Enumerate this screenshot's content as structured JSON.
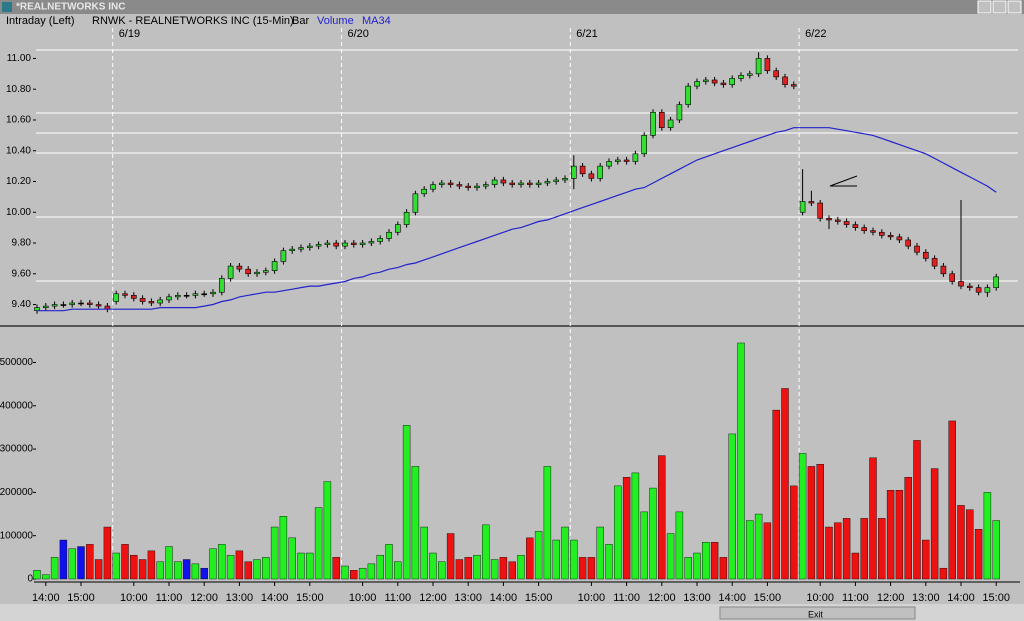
{
  "window_title": "*REALNETWORKS INC",
  "footer": "Exit",
  "chart_data": [
    {
      "type": "candlestick",
      "title": "Intraday  (Left)",
      "subtitle": "RNWK - REALNETWORKS INC (15-Min)",
      "style": "Bar",
      "up_color": "#33dd33",
      "down_color": "#dd2222",
      "sessions": [
        {
          "label": "6/19",
          "start": 9
        },
        {
          "label": "6/20",
          "start": 35
        },
        {
          "label": "6/21",
          "start": 61
        },
        {
          "label": "6/22",
          "start": 87
        }
      ],
      "open": [
        9.36,
        9.38,
        9.39,
        9.4,
        9.4,
        9.41,
        9.41,
        9.4,
        9.39,
        9.42,
        9.47,
        9.46,
        9.44,
        9.42,
        9.41,
        9.43,
        9.45,
        9.46,
        9.46,
        9.47,
        9.47,
        9.48,
        9.57,
        9.65,
        9.63,
        9.6,
        9.61,
        9.62,
        9.68,
        9.75,
        9.76,
        9.77,
        9.78,
        9.79,
        9.8,
        9.78,
        9.8,
        9.79,
        9.8,
        9.81,
        9.83,
        9.87,
        9.92,
        10.0,
        10.12,
        10.15,
        10.18,
        10.19,
        10.18,
        10.17,
        10.16,
        10.17,
        10.18,
        10.21,
        10.19,
        10.18,
        10.19,
        10.18,
        10.19,
        10.2,
        10.21,
        10.22,
        10.3,
        10.25,
        10.22,
        10.3,
        10.33,
        10.34,
        10.33,
        10.38,
        10.5,
        10.65,
        10.55,
        10.6,
        10.7,
        10.82,
        10.85,
        10.86,
        10.84,
        10.83,
        10.87,
        10.89,
        10.9,
        11.0,
        10.92,
        10.88,
        10.83,
        10.0,
        10.07,
        10.06,
        9.96,
        9.95,
        9.94,
        9.92,
        9.9,
        9.88,
        9.87,
        9.85,
        9.84,
        9.82,
        9.78,
        9.74,
        9.7,
        9.65,
        9.6,
        9.55,
        9.52,
        9.51,
        9.48,
        9.51
      ],
      "high": [
        9.4,
        9.41,
        9.42,
        9.42,
        9.43,
        9.43,
        9.43,
        9.42,
        9.41,
        9.49,
        9.49,
        9.48,
        9.46,
        9.44,
        9.45,
        9.47,
        9.48,
        9.48,
        9.49,
        9.49,
        9.5,
        9.59,
        9.67,
        9.67,
        9.65,
        9.63,
        9.64,
        9.7,
        9.77,
        9.78,
        9.79,
        9.8,
        9.81,
        9.82,
        9.82,
        9.82,
        9.82,
        9.82,
        9.83,
        9.85,
        9.89,
        9.94,
        10.02,
        10.14,
        10.17,
        10.2,
        10.21,
        10.21,
        10.2,
        10.19,
        10.19,
        10.2,
        10.23,
        10.23,
        10.21,
        10.21,
        10.21,
        10.21,
        10.22,
        10.23,
        10.24,
        10.37,
        10.32,
        10.27,
        10.32,
        10.35,
        10.36,
        10.36,
        10.4,
        10.52,
        10.67,
        10.67,
        10.62,
        10.72,
        10.84,
        10.87,
        10.88,
        10.88,
        10.86,
        10.89,
        10.91,
        10.92,
        11.04,
        11.02,
        10.94,
        10.9,
        10.85,
        10.28,
        10.14,
        10.08,
        9.98,
        9.97,
        9.96,
        9.94,
        9.92,
        9.9,
        9.89,
        9.87,
        9.86,
        9.84,
        9.8,
        9.76,
        9.72,
        9.67,
        9.62,
        10.08,
        9.54,
        9.53,
        9.53,
        9.6
      ],
      "low": [
        9.34,
        9.36,
        9.37,
        9.38,
        9.38,
        9.39,
        9.38,
        9.37,
        9.35,
        9.4,
        9.44,
        9.42,
        9.4,
        9.39,
        9.39,
        9.41,
        9.43,
        9.44,
        9.44,
        9.45,
        9.45,
        9.46,
        9.55,
        9.61,
        9.58,
        9.58,
        9.59,
        9.6,
        9.66,
        9.73,
        9.74,
        9.75,
        9.76,
        9.77,
        9.76,
        9.76,
        9.77,
        9.77,
        9.78,
        9.79,
        9.81,
        9.85,
        9.9,
        9.98,
        10.1,
        10.13,
        10.16,
        10.16,
        10.15,
        10.14,
        10.14,
        10.15,
        10.16,
        10.17,
        10.16,
        10.16,
        10.16,
        10.16,
        10.17,
        10.18,
        10.19,
        10.15,
        10.23,
        10.2,
        10.2,
        10.28,
        10.31,
        10.31,
        10.31,
        10.36,
        10.48,
        10.53,
        10.53,
        10.58,
        10.68,
        10.8,
        10.83,
        10.82,
        10.81,
        10.81,
        10.85,
        10.87,
        10.88,
        10.9,
        10.86,
        10.81,
        10.8,
        9.98,
        10.04,
        9.94,
        9.89,
        9.92,
        9.9,
        9.88,
        9.86,
        9.85,
        9.83,
        9.82,
        9.8,
        9.76,
        9.72,
        9.68,
        9.63,
        9.58,
        9.53,
        9.5,
        9.49,
        9.46,
        9.45,
        9.49
      ],
      "close": [
        9.38,
        9.39,
        9.4,
        9.4,
        9.41,
        9.41,
        9.4,
        9.39,
        9.37,
        9.47,
        9.46,
        9.44,
        9.42,
        9.41,
        9.43,
        9.45,
        9.46,
        9.46,
        9.47,
        9.47,
        9.48,
        9.57,
        9.65,
        9.63,
        9.6,
        9.61,
        9.62,
        9.68,
        9.75,
        9.76,
        9.77,
        9.78,
        9.79,
        9.8,
        9.78,
        9.8,
        9.79,
        9.8,
        9.81,
        9.83,
        9.87,
        9.92,
        10.0,
        10.12,
        10.15,
        10.18,
        10.19,
        10.18,
        10.17,
        10.16,
        10.17,
        10.18,
        10.21,
        10.19,
        10.18,
        10.19,
        10.18,
        10.19,
        10.2,
        10.21,
        10.22,
        10.3,
        10.25,
        10.22,
        10.3,
        10.33,
        10.34,
        10.33,
        10.38,
        10.5,
        10.65,
        10.55,
        10.6,
        10.7,
        10.82,
        10.85,
        10.86,
        10.84,
        10.83,
        10.87,
        10.89,
        10.9,
        11.0,
        10.92,
        10.88,
        10.83,
        10.82,
        10.07,
        10.06,
        9.96,
        9.95,
        9.94,
        9.92,
        9.9,
        9.88,
        9.87,
        9.85,
        9.84,
        9.82,
        9.78,
        9.74,
        9.7,
        9.65,
        9.6,
        9.55,
        9.52,
        9.51,
        9.48,
        9.51,
        9.58
      ],
      "series": [
        {
          "name": "MA34",
          "color": "#2222cc",
          "values": [
            9.36,
            9.36,
            9.36,
            9.36,
            9.37,
            9.37,
            9.37,
            9.37,
            9.37,
            9.37,
            9.37,
            9.37,
            9.37,
            9.37,
            9.38,
            9.38,
            9.38,
            9.38,
            9.38,
            9.39,
            9.4,
            9.42,
            9.43,
            9.45,
            9.46,
            9.47,
            9.48,
            9.48,
            9.49,
            9.5,
            9.51,
            9.52,
            9.52,
            9.53,
            9.54,
            9.55,
            9.57,
            9.58,
            9.6,
            9.61,
            9.63,
            9.64,
            9.66,
            9.67,
            9.69,
            9.71,
            9.73,
            9.75,
            9.77,
            9.79,
            9.81,
            9.83,
            9.85,
            9.87,
            9.89,
            9.9,
            9.92,
            9.94,
            9.95,
            9.97,
            9.99,
            10.01,
            10.03,
            10.05,
            10.07,
            10.09,
            10.11,
            10.13,
            10.15,
            10.16,
            10.19,
            10.22,
            10.25,
            10.28,
            10.31,
            10.34,
            10.36,
            10.38,
            10.4,
            10.42,
            10.44,
            10.46,
            10.48,
            10.5,
            10.52,
            10.53,
            10.55,
            10.55,
            10.55,
            10.55,
            10.55,
            10.54,
            10.53,
            10.52,
            10.51,
            10.5,
            10.48,
            10.46,
            10.44,
            10.42,
            10.4,
            10.38,
            10.35,
            10.32,
            10.29,
            10.26,
            10.23,
            10.2,
            10.17,
            10.13
          ]
        }
      ],
      "ylim": [
        9.28,
        11.25
      ],
      "yticks": [
        {
          "value": 9.4,
          "label": "9.40"
        },
        {
          "value": 9.6,
          "label": "9.60"
        },
        {
          "value": 9.8,
          "label": "9.80"
        },
        {
          "value": 10,
          "label": "10.00"
        },
        {
          "value": 10.2,
          "label": "10.20"
        },
        {
          "value": 10.4,
          "label": "10.40"
        },
        {
          "value": 10.6,
          "label": "10.60"
        },
        {
          "value": 10.8,
          "label": "10.80"
        },
        {
          "value": 11,
          "label": "11.00"
        }
      ]
    },
    {
      "type": "bar",
      "up_color": "#22ee22",
      "down_color": "#ee1111",
      "flat_color": "#1111ee",
      "categories": [
        null,
        "14:00",
        null,
        null,
        null,
        "15:00",
        null,
        null,
        null,
        null,
        null,
        "10:00",
        null,
        null,
        null,
        "11:00",
        null,
        null,
        null,
        "12:00",
        null,
        null,
        null,
        "13:00",
        null,
        null,
        null,
        "14:00",
        null,
        null,
        null,
        "15:00",
        null,
        null,
        null,
        null,
        null,
        "10:00",
        null,
        null,
        null,
        "11:00",
        null,
        null,
        null,
        "12:00",
        null,
        null,
        null,
        "13:00",
        null,
        null,
        null,
        "14:00",
        null,
        null,
        null,
        "15:00",
        null,
        null,
        null,
        null,
        null,
        "10:00",
        null,
        null,
        null,
        "11:00",
        null,
        null,
        null,
        "12:00",
        null,
        null,
        null,
        "13:00",
        null,
        null,
        null,
        "14:00",
        null,
        null,
        null,
        "15:00",
        null,
        null,
        null,
        null,
        null,
        "10:00",
        null,
        null,
        null,
        "11:00",
        null,
        null,
        null,
        "12:00",
        null,
        null,
        null,
        "13:00",
        null,
        null,
        null,
        "14:00",
        null,
        null,
        null,
        "15:00"
      ],
      "series": [
        {
          "name": "Volume",
          "values": [
            20000,
            10000,
            50000,
            90000,
            70000,
            75000,
            80000,
            45000,
            120000,
            60000,
            80000,
            55000,
            45000,
            65000,
            40000,
            75000,
            40000,
            45000,
            35000,
            25000,
            70000,
            80000,
            55000,
            65000,
            40000,
            45000,
            50000,
            120000,
            145000,
            95000,
            60000,
            60000,
            165000,
            225000,
            50000,
            30000,
            20000,
            25000,
            35000,
            55000,
            80000,
            40000,
            355000,
            260000,
            120000,
            60000,
            40000,
            105000,
            45000,
            50000,
            55000,
            125000,
            45000,
            50000,
            40000,
            55000,
            95000,
            110000,
            260000,
            90000,
            120000,
            90000,
            50000,
            50000,
            120000,
            80000,
            215000,
            235000,
            245000,
            155000,
            210000,
            285000,
            105000,
            155000,
            50000,
            60000,
            85000,
            85000,
            50000,
            335000,
            545000,
            135000,
            150000,
            130000,
            390000,
            440000,
            215000,
            290000,
            260000,
            265000,
            120000,
            130000,
            140000,
            60000,
            140000,
            280000,
            140000,
            205000,
            205000,
            235000,
            320000,
            90000,
            255000,
            25000,
            365000,
            170000,
            160000,
            115000,
            200000,
            135000
          ]
        }
      ],
      "ylim": [
        0,
        575000
      ],
      "yticks": [
        0,
        100000,
        200000,
        300000,
        400000,
        500000
      ]
    }
  ]
}
